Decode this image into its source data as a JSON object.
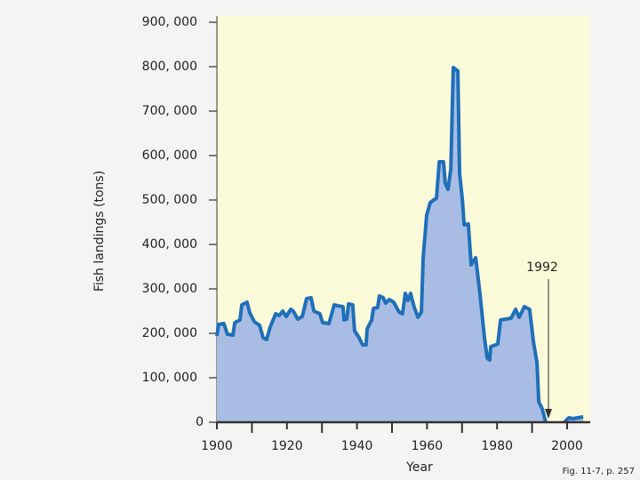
{
  "chart_data": {
    "type": "area",
    "y_label": "Fish landings (tons)",
    "x_label": "Year",
    "annotation": "1992",
    "caption": "Fig. 11-7, p. 257",
    "x": [
      1900,
      1900.5,
      1902,
      1903,
      1904.6,
      1905.1,
      1906.6,
      1907.1,
      1908.6,
      1909.4,
      1910.7,
      1912.2,
      1913.2,
      1914.2,
      1915.2,
      1916.8,
      1917.8,
      1918.8,
      1919.8,
      1921.1,
      1921.8,
      1923.1,
      1924.4,
      1925.6,
      1926.9,
      1927.7,
      1929.4,
      1930.2,
      1932,
      1933.5,
      1934.5,
      1936,
      1936.3,
      1937.1,
      1937.6,
      1938.8,
      1939.3,
      1940.6,
      1941.6,
      1942.6,
      1942.9,
      1944.2,
      1944.7,
      1945.9,
      1946.4,
      1947.5,
      1948.2,
      1949.2,
      1950.5,
      1952,
      1953,
      1953.8,
      1954.6,
      1955.3,
      1956.3,
      1957.4,
      1958.4,
      1958.9,
      1959.9,
      1960.9,
      1961.9,
      1962.7,
      1963.5,
      1964.7,
      1965.2,
      1966,
      1966.8,
      1967.5,
      1968.8,
      1969.3,
      1970.1,
      1970.6,
      1971.8,
      1972.6,
      1973.9,
      1975.1,
      1976.4,
      1977.2,
      1977.9,
      1978.2,
      1980.2,
      1981,
      1984,
      1985.3,
      1986.3,
      1987.8,
      1989.3,
      1990.4,
      1991.4,
      1991.9,
      1992.9,
      1993.9,
      1996,
      1999.2,
      2000.5,
      2001.5,
      2004.6
    ],
    "series": [
      {
        "name": "Fish landings",
        "color": "#1f6fb8",
        "fill": "#a9bde4",
        "values": [
          194000,
          220000,
          222000,
          198000,
          196000,
          224000,
          230000,
          264000,
          270000,
          246000,
          226000,
          218000,
          190000,
          186000,
          214000,
          244000,
          240000,
          250000,
          238000,
          254000,
          250000,
          232000,
          238000,
          278000,
          280000,
          250000,
          244000,
          224000,
          222000,
          264000,
          262000,
          260000,
          230000,
          232000,
          266000,
          264000,
          206000,
          190000,
          174000,
          174000,
          210000,
          230000,
          256000,
          258000,
          284000,
          280000,
          268000,
          276000,
          270000,
          248000,
          244000,
          290000,
          274000,
          290000,
          260000,
          236000,
          248000,
          370000,
          466000,
          494000,
          500000,
          504000,
          586000,
          586000,
          538000,
          524000,
          570000,
          798000,
          790000,
          560000,
          500000,
          444000,
          446000,
          354000,
          370000,
          290000,
          190000,
          144000,
          140000,
          170000,
          176000,
          230000,
          234000,
          254000,
          236000,
          260000,
          254000,
          180000,
          134000,
          46000,
          30000,
          0,
          null,
          0,
          10000,
          8000,
          12000
        ]
      }
    ],
    "xlim": [
      1900,
      2006.6
    ],
    "ylim": [
      0,
      914000
    ],
    "xticks": [
      1900,
      1920,
      1940,
      1960,
      1980,
      2000
    ],
    "xminor": [
      1910,
      1930,
      1950,
      1970,
      1990
    ],
    "yticks": [
      {
        "value": 0,
        "label": "0"
      },
      {
        "value": 100000,
        "label": "100, 000"
      },
      {
        "value": 200000,
        "label": "200, 000"
      },
      {
        "value": 300000,
        "label": "300, 000"
      },
      {
        "value": 400000,
        "label": "400, 000"
      },
      {
        "value": 500000,
        "label": "500, 000"
      },
      {
        "value": 600000,
        "label": "600, 000"
      },
      {
        "value": 700000,
        "label": "700, 000"
      },
      {
        "value": 800000,
        "label": "800, 000"
      },
      {
        "value": 900000,
        "label": "900, 000"
      }
    ]
  }
}
